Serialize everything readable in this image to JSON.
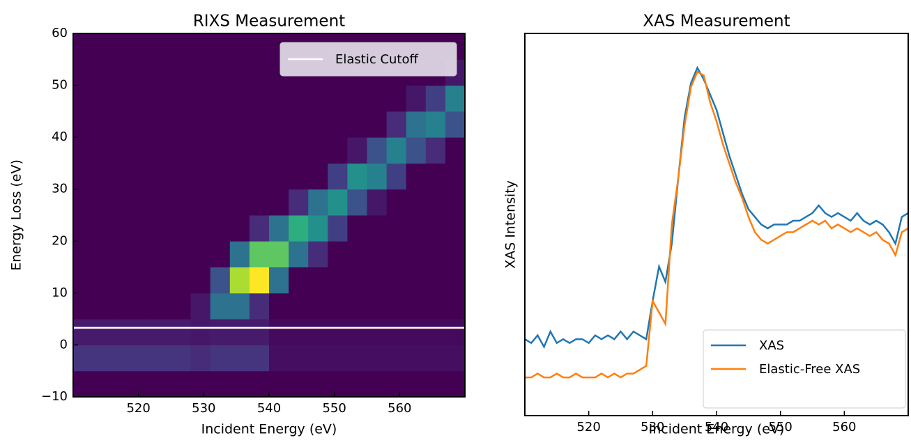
{
  "chart_data": [
    {
      "type": "heatmap",
      "title": "RIXS Measurement",
      "xlabel": "Incident Energy (eV)",
      "ylabel": "Energy Loss (eV)",
      "colormap": "viridis",
      "x_bins": [
        510,
        513,
        516,
        519,
        522,
        525,
        528,
        531,
        534,
        537,
        540,
        543,
        546,
        549,
        552,
        555,
        558,
        561,
        564,
        567,
        570
      ],
      "y_bins": [
        -10,
        -5,
        0,
        5,
        10,
        15,
        20,
        25,
        30,
        35,
        40,
        45,
        50,
        55,
        60
      ],
      "z": [
        [
          0,
          0,
          0,
          0,
          0,
          0,
          0,
          0,
          0,
          0,
          0,
          0,
          0,
          0,
          0,
          0,
          0,
          0,
          0,
          0
        ],
        [
          0.12,
          0.12,
          0.12,
          0.12,
          0.12,
          0.12,
          0.1,
          0.12,
          0.12,
          0.12,
          0.03,
          0.03,
          0.03,
          0.03,
          0.03,
          0.03,
          0.03,
          0.03,
          0.03,
          0.03
        ],
        [
          0.06,
          0.06,
          0.06,
          0.06,
          0.06,
          0.06,
          0.05,
          0.06,
          0.06,
          0.06,
          0.02,
          0.02,
          0.02,
          0.02,
          0.02,
          0.02,
          0.02,
          0.02,
          0.02,
          0.02
        ],
        [
          0,
          0,
          0,
          0,
          0,
          0,
          0.05,
          0.3,
          0.3,
          0.1,
          0,
          0,
          0,
          0,
          0,
          0,
          0,
          0,
          0,
          0
        ],
        [
          0,
          0,
          0,
          0,
          0,
          0,
          0,
          0.2,
          0.7,
          0.8,
          0.3,
          0,
          0,
          0,
          0,
          0,
          0,
          0,
          0,
          0
        ],
        [
          0,
          0,
          0,
          0,
          0,
          0,
          0,
          0,
          0.3,
          0.6,
          0.6,
          0.3,
          0.1,
          0,
          0,
          0,
          0,
          0,
          0,
          0
        ],
        [
          0,
          0,
          0,
          0,
          0,
          0,
          0,
          0,
          0,
          0.1,
          0.3,
          0.5,
          0.4,
          0.15,
          0,
          0,
          0,
          0,
          0,
          0
        ],
        [
          0,
          0,
          0,
          0,
          0,
          0,
          0,
          0,
          0,
          0,
          0,
          0.1,
          0.3,
          0.4,
          0.2,
          0.05,
          0,
          0,
          0,
          0
        ],
        [
          0,
          0,
          0,
          0,
          0,
          0,
          0,
          0,
          0,
          0,
          0,
          0,
          0,
          0.15,
          0.4,
          0.35,
          0.15,
          0,
          0,
          0
        ],
        [
          0,
          0,
          0,
          0,
          0,
          0,
          0,
          0,
          0,
          0,
          0,
          0,
          0,
          0,
          0.05,
          0.2,
          0.35,
          0.2,
          0.1,
          0
        ],
        [
          0,
          0,
          0,
          0,
          0,
          0,
          0,
          0,
          0,
          0,
          0,
          0,
          0,
          0,
          0,
          0,
          0.1,
          0.3,
          0.35,
          0.2
        ],
        [
          0,
          0,
          0,
          0,
          0,
          0,
          0,
          0,
          0,
          0,
          0,
          0,
          0,
          0,
          0,
          0,
          0,
          0.05,
          0.15,
          0.35
        ],
        [
          0,
          0,
          0,
          0,
          0,
          0,
          0,
          0,
          0,
          0,
          0,
          0,
          0,
          0,
          0,
          0,
          0,
          0,
          0,
          0.05
        ],
        [
          0,
          0,
          0,
          0,
          0,
          0,
          0,
          0,
          0,
          0,
          0,
          0,
          0,
          0,
          0,
          0,
          0,
          0,
          0,
          0
        ]
      ],
      "lines": [
        {
          "name": "Elastic Cutoff",
          "color": "#ffffff",
          "y": 3.3
        }
      ],
      "xlim": [
        510,
        570
      ],
      "ylim": [
        -10,
        60
      ],
      "xticks": [
        520,
        530,
        540,
        550,
        560
      ],
      "yticks": [
        {
          "value": -10,
          "label": "−10"
        },
        0,
        10,
        20,
        30,
        40,
        50,
        60
      ],
      "legend": "upper right"
    },
    {
      "type": "line",
      "title": "XAS Measurement",
      "xlabel": "Incident Energy (eV)",
      "ylabel": "XAS Intensity",
      "x": [
        510,
        511,
        512,
        513,
        514,
        515,
        516,
        517,
        518,
        519,
        520,
        521,
        522,
        523,
        524,
        525,
        526,
        527,
        528,
        529,
        530,
        531,
        532,
        533,
        534,
        535,
        536,
        537,
        538,
        539,
        540,
        541,
        542,
        543,
        544,
        545,
        546,
        547,
        548,
        549,
        550,
        551,
        552,
        553,
        554,
        555,
        556,
        557,
        558,
        559,
        560,
        561,
        562,
        563,
        564,
        565,
        566,
        567,
        568,
        569,
        570
      ],
      "series": [
        {
          "name": "XAS",
          "color": "#1f77b4",
          "values": [
            0.2,
            0.19,
            0.21,
            0.18,
            0.22,
            0.19,
            0.2,
            0.19,
            0.2,
            0.2,
            0.19,
            0.21,
            0.2,
            0.21,
            0.2,
            0.22,
            0.2,
            0.22,
            0.21,
            0.2,
            0.3,
            0.39,
            0.35,
            0.45,
            0.62,
            0.78,
            0.87,
            0.91,
            0.88,
            0.84,
            0.8,
            0.74,
            0.68,
            0.63,
            0.58,
            0.54,
            0.52,
            0.5,
            0.49,
            0.5,
            0.5,
            0.5,
            0.51,
            0.51,
            0.52,
            0.53,
            0.55,
            0.53,
            0.52,
            0.53,
            0.52,
            0.51,
            0.53,
            0.51,
            0.5,
            0.51,
            0.5,
            0.48,
            0.45,
            0.52,
            0.53
          ]
        },
        {
          "name": "Elastic-Free XAS",
          "color": "#ff7f0e",
          "values": [
            0.1,
            0.1,
            0.11,
            0.1,
            0.1,
            0.11,
            0.1,
            0.1,
            0.11,
            0.1,
            0.1,
            0.1,
            0.11,
            0.1,
            0.11,
            0.1,
            0.11,
            0.11,
            0.12,
            0.13,
            0.3,
            0.27,
            0.24,
            0.5,
            0.62,
            0.76,
            0.86,
            0.9,
            0.89,
            0.82,
            0.77,
            0.71,
            0.66,
            0.61,
            0.57,
            0.52,
            0.48,
            0.46,
            0.45,
            0.46,
            0.47,
            0.48,
            0.48,
            0.49,
            0.5,
            0.51,
            0.5,
            0.51,
            0.49,
            0.5,
            0.49,
            0.48,
            0.49,
            0.48,
            0.47,
            0.48,
            0.46,
            0.45,
            0.42,
            0.48,
            0.49
          ]
        }
      ],
      "xlim": [
        510,
        570
      ],
      "ylim": [
        0,
        1
      ],
      "xticks": [
        520,
        530,
        540,
        550,
        560
      ],
      "legend": "lower right"
    }
  ]
}
